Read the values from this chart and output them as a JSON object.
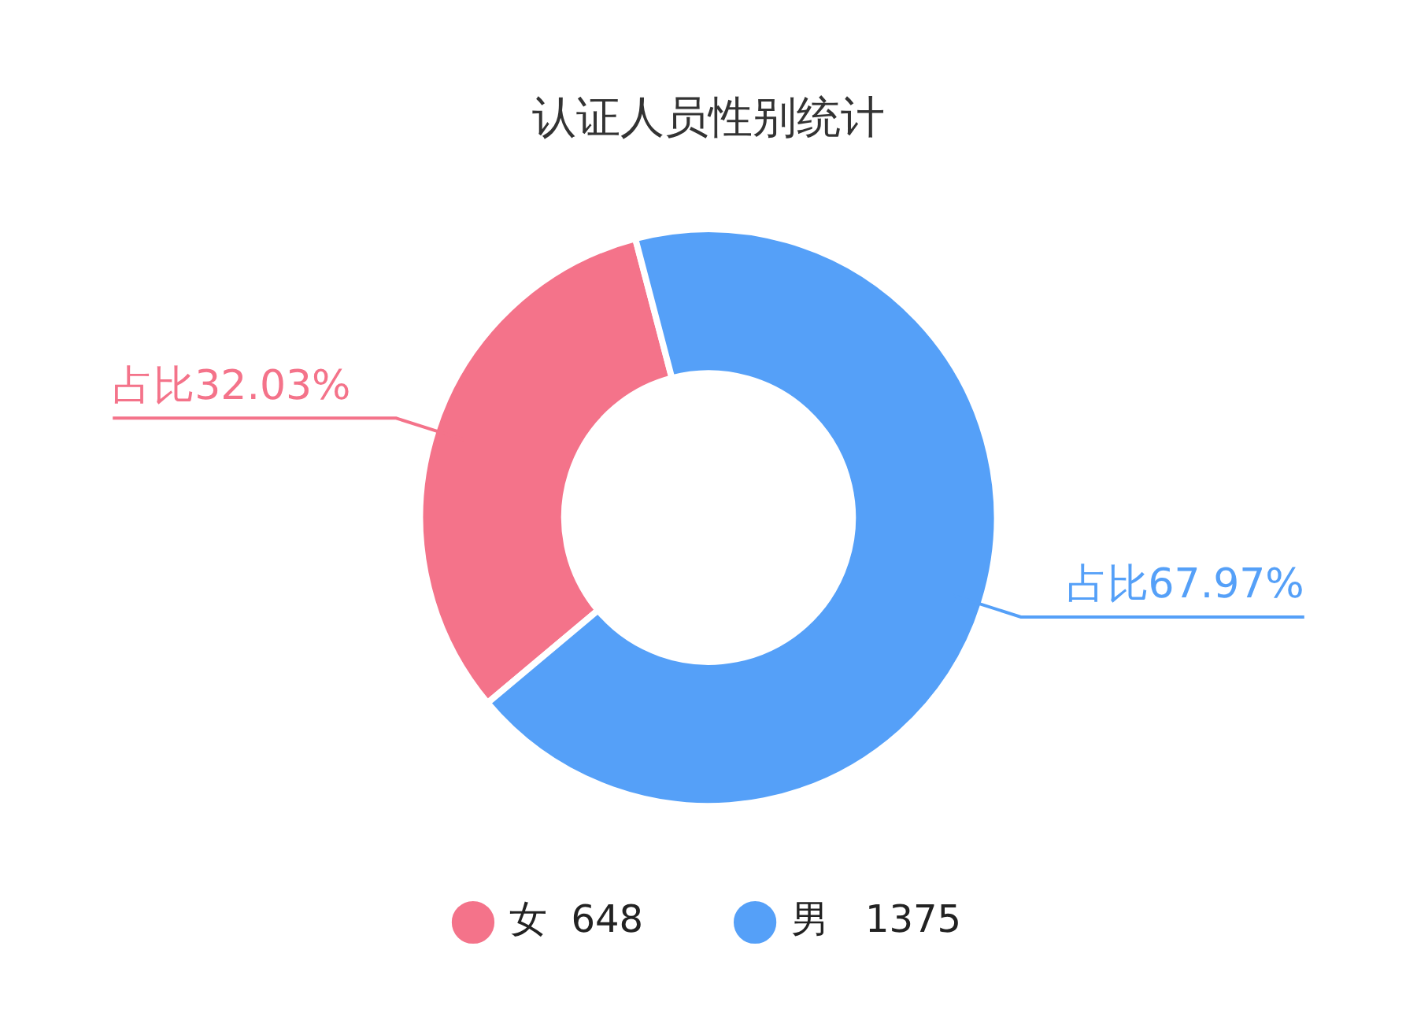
{
  "chart_data": {
    "type": "donut",
    "title": "认证人员性别统计",
    "categories": [
      "女  648",
      "男   1375"
    ],
    "values": [
      32.03,
      67.97
    ],
    "colors": [
      "#f4738a",
      "#55a0f8"
    ],
    "value_labels": [
      "占比32.03%",
      "占比67.97%"
    ],
    "legend": "bottom"
  }
}
